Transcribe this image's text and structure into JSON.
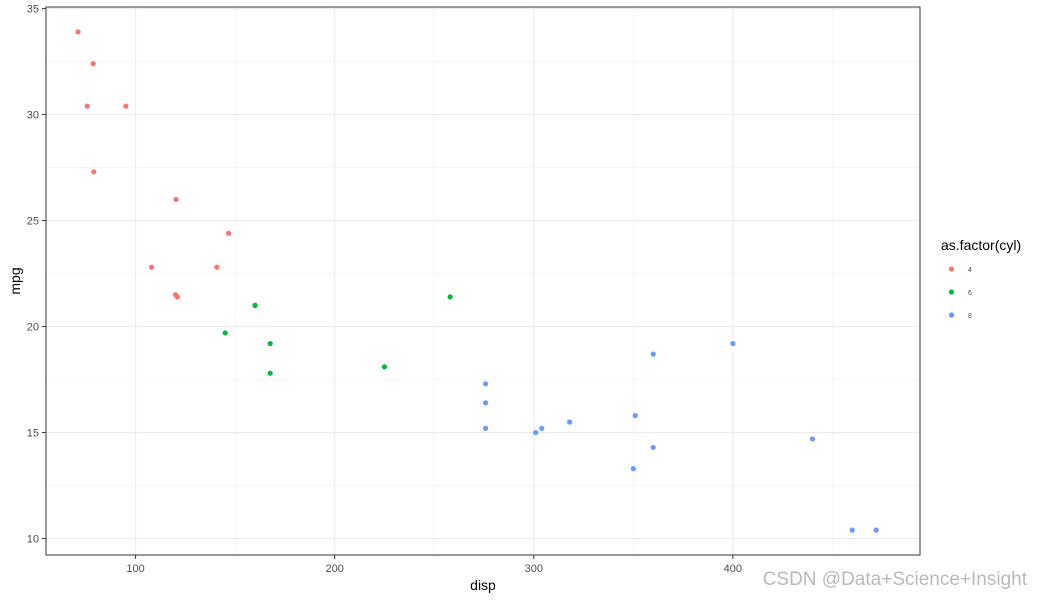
{
  "chart_data": {
    "type": "scatter",
    "title": "",
    "xlabel": "disp",
    "ylabel": "mpg",
    "xlim": [
      54.99,
      494.01
    ],
    "ylim": [
      9.225,
      35.075
    ],
    "x_ticks": [
      100,
      200,
      300,
      400
    ],
    "y_ticks": [
      10,
      15,
      20,
      25,
      30,
      35
    ],
    "grid": true,
    "legend": {
      "title": "as.factor(cyl)",
      "position": "right",
      "entries": [
        {
          "label": "4",
          "color": "#F8766D"
        },
        {
          "label": "6",
          "color": "#00BA38"
        },
        {
          "label": "8",
          "color": "#619CFF"
        }
      ]
    },
    "series": [
      {
        "name": "4",
        "color": "#F8766D",
        "x": [
          108,
          146.7,
          140.8,
          78.7,
          75.7,
          71.1,
          120.1,
          79,
          120.3,
          95.1,
          121
        ],
        "y": [
          22.8,
          24.4,
          22.8,
          32.4,
          30.4,
          33.9,
          21.5,
          27.3,
          26,
          30.4,
          21.4
        ]
      },
      {
        "name": "6",
        "color": "#00BA38",
        "x": [
          160,
          160,
          258,
          225,
          167.6,
          167.6,
          145
        ],
        "y": [
          21,
          21,
          21.4,
          18.1,
          19.2,
          17.8,
          19.7
        ]
      },
      {
        "name": "8",
        "color": "#619CFF",
        "x": [
          360,
          360,
          275.8,
          275.8,
          275.8,
          472,
          460,
          440,
          318,
          304,
          350,
          400,
          351,
          301
        ],
        "y": [
          18.7,
          14.3,
          16.4,
          17.3,
          15.2,
          10.4,
          10.4,
          14.7,
          15.5,
          15.2,
          13.3,
          19.2,
          15.8,
          15
        ]
      }
    ]
  },
  "watermark": "CSDN @Data+Science+Insight"
}
